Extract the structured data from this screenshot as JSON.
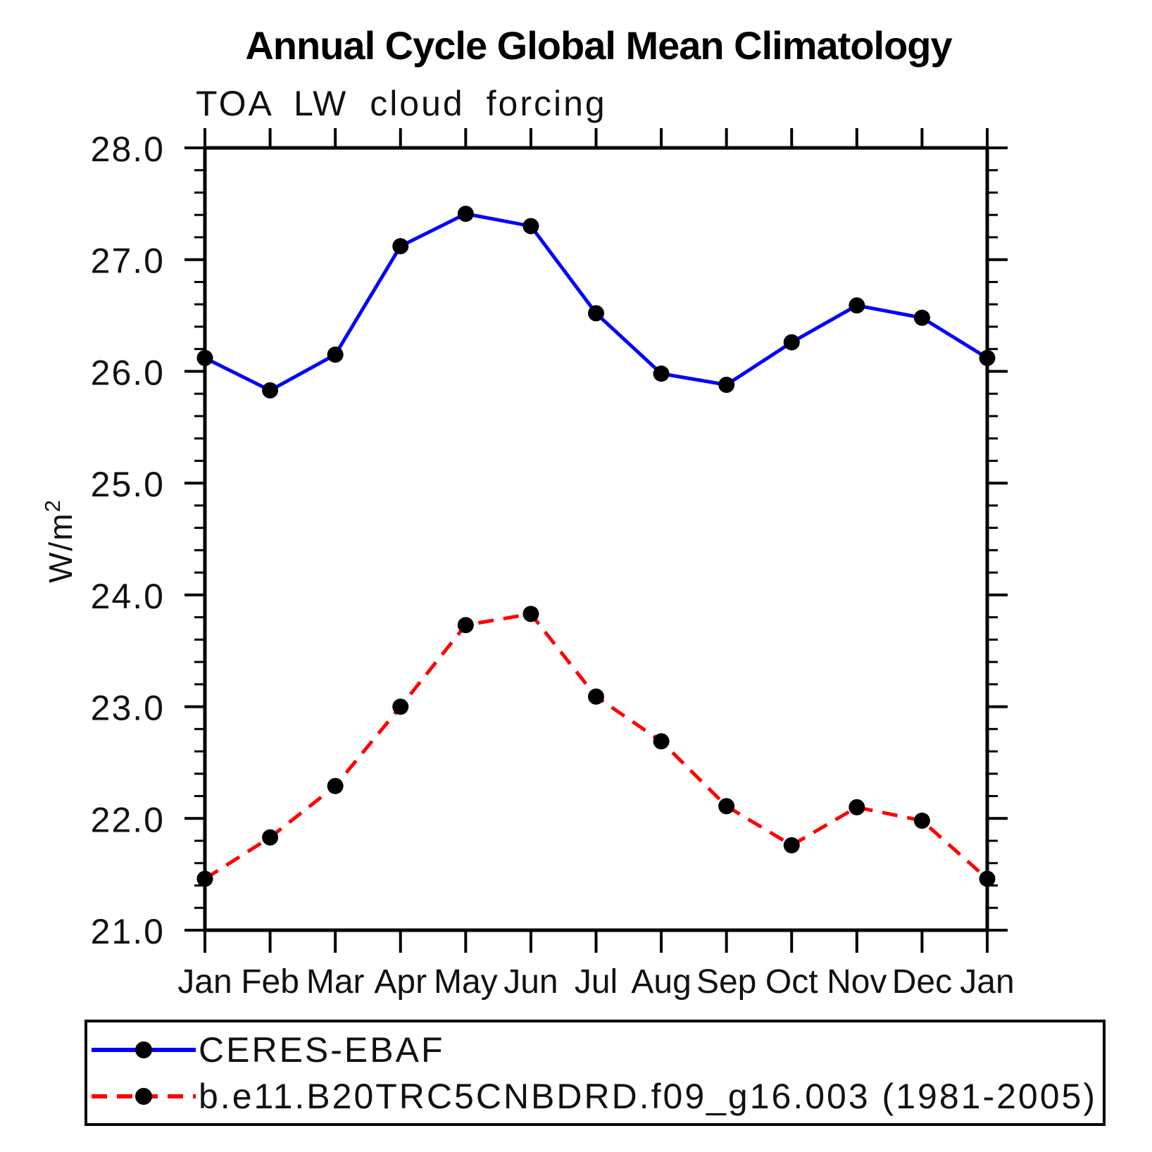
{
  "chart_data": {
    "type": "line",
    "title": "Annual Cycle Global Mean Climatology",
    "subtitle": "TOA LW cloud forcing",
    "ylabel": "W/m2",
    "ylabel_display": {
      "base": "W/m",
      "exp": "2"
    },
    "x_tick_labels": [
      "Jan",
      "Feb",
      "Mar",
      "Apr",
      "May",
      "Jun",
      "Jul",
      "Aug",
      "Sep",
      "Oct",
      "Nov",
      "Dec",
      "Jan"
    ],
    "y_tick_labels": [
      "21.0",
      "22.0",
      "23.0",
      "24.0",
      "25.0",
      "26.0",
      "27.0",
      "28.0"
    ],
    "ylim": [
      21.0,
      28.0
    ],
    "y_major_step": 1.0,
    "y_minor_step": 0.2,
    "grid": false,
    "legend_position": "bottom",
    "marker": "filled-circle",
    "marker_color": "#000000",
    "axis_color": "#000000",
    "series": [
      {
        "name": "CERES-EBAF",
        "color": "#0000ff",
        "line_style": "solid",
        "values": [
          26.12,
          25.83,
          26.15,
          27.12,
          27.41,
          27.3,
          26.52,
          25.98,
          25.88,
          26.26,
          26.59,
          26.48,
          26.12
        ]
      },
      {
        "name": "b.e11.B20TRC5CNBDRD.f09_g16.003 (1981-2005)",
        "color": "#ff0000",
        "line_style": "dashed",
        "values": [
          21.46,
          21.83,
          22.29,
          23.0,
          23.73,
          23.83,
          23.09,
          22.69,
          22.11,
          21.76,
          22.1,
          21.98,
          21.46
        ]
      }
    ]
  }
}
